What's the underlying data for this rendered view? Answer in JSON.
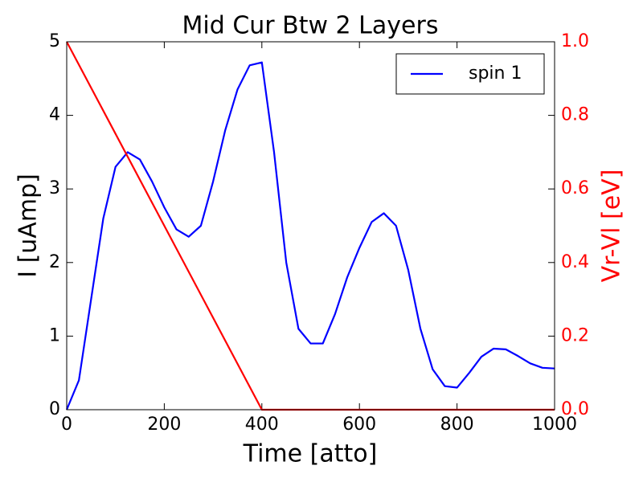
{
  "chart_data": {
    "type": "line",
    "title": "Mid Cur Btw 2 Layers",
    "x_label": "Time [atto]",
    "y_label": "I [uAmp]",
    "y2_label": "Vr-Vl [eV]",
    "xlim": [
      0,
      1000
    ],
    "xticks": [
      0,
      200,
      400,
      600,
      800,
      1000
    ],
    "ylim": [
      0,
      5
    ],
    "yticks": [
      0,
      1,
      2,
      3,
      4,
      5
    ],
    "y2lim": [
      0,
      1
    ],
    "y2ticks": [
      {
        "value": 0,
        "label": "0.0"
      },
      0.2,
      0.4,
      0.6,
      0.8,
      {
        "value": 1,
        "label": "1.0"
      }
    ],
    "y2_color": "#ff0000",
    "grid": false,
    "legend": "upper right",
    "series": [
      {
        "name": "spin 1",
        "color": "#0000ff",
        "x": [
          0,
          25,
          50,
          75,
          100,
          125,
          150,
          175,
          200,
          225,
          250,
          275,
          300,
          325,
          350,
          375,
          400,
          425,
          450,
          475,
          500,
          525,
          550,
          575,
          600,
          625,
          650,
          675,
          700,
          725,
          750,
          775,
          800,
          825,
          850,
          875,
          900,
          925,
          950,
          975,
          1000
        ],
        "values": [
          0,
          0.4,
          1.5,
          2.6,
          3.3,
          3.5,
          3.4,
          3.1,
          2.75,
          2.45,
          2.35,
          2.5,
          3.1,
          3.8,
          4.35,
          4.68,
          4.72,
          3.5,
          2.0,
          1.1,
          0.9,
          0.9,
          1.3,
          1.8,
          2.2,
          2.55,
          2.67,
          2.5,
          1.9,
          1.1,
          0.55,
          0.32,
          0.3,
          0.5,
          0.72,
          0.83,
          0.82,
          0.73,
          0.63,
          0.57,
          0.56
        ]
      },
      {
        "color": "#ff0000",
        "axis": "y2",
        "x": [
          0,
          400,
          1000
        ],
        "values": [
          1,
          0,
          0
        ]
      }
    ]
  }
}
